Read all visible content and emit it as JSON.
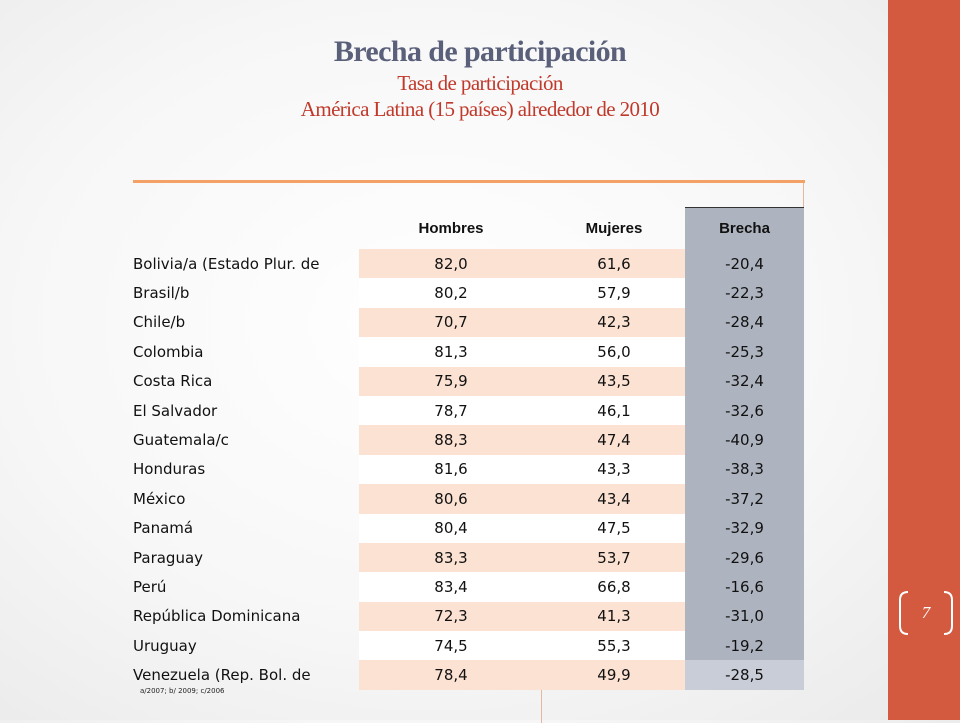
{
  "slide": {
    "title": "Brecha de participación",
    "subtitle_line1": "Tasa de participación",
    "subtitle_line2": "América Latina (15 países) alrededor de 2010",
    "page_number": "7",
    "footnote": "a/2007; b/ 2009; c/2006"
  },
  "colors": {
    "side_band": "#d35a3e",
    "title": "#5a5f7a",
    "subtitle": "#c0392b",
    "row_shade": "#fbe2d3",
    "brecha_column": "#aeb4bf",
    "table_top_rule": "#f4a166"
  },
  "table": {
    "headers": [
      "",
      "Hombres",
      "Mujeres",
      "Brecha"
    ],
    "rows": [
      [
        "Bolivia/a (Estado Plur. de",
        "82,0",
        "61,6",
        "-20,4"
      ],
      [
        "Brasil/b",
        "80,2",
        "57,9",
        "-22,3"
      ],
      [
        "Chile/b",
        "70,7",
        "42,3",
        "-28,4"
      ],
      [
        "Colombia",
        "81,3",
        "56,0",
        "-25,3"
      ],
      [
        "Costa Rica",
        "75,9",
        "43,5",
        "-32,4"
      ],
      [
        "El Salvador",
        "78,7",
        "46,1",
        "-32,6"
      ],
      [
        "Guatemala/c",
        "88,3",
        "47,4",
        "-40,9"
      ],
      [
        "Honduras",
        "81,6",
        "43,3",
        "-38,3"
      ],
      [
        "México",
        "80,6",
        "43,4",
        "-37,2"
      ],
      [
        "Panamá",
        "80,4",
        "47,5",
        "-32,9"
      ],
      [
        "Paraguay",
        "83,3",
        "53,7",
        "-29,6"
      ],
      [
        "Perú",
        "83,4",
        "66,8",
        "-16,6"
      ],
      [
        "República Dominicana",
        "72,3",
        "41,3",
        "-31,0"
      ],
      [
        "Uruguay",
        "74,5",
        "55,3",
        "-19,2"
      ],
      [
        "Venezuela (Rep. Bol. de",
        "78,4",
        "49,9",
        "-28,5"
      ]
    ]
  }
}
